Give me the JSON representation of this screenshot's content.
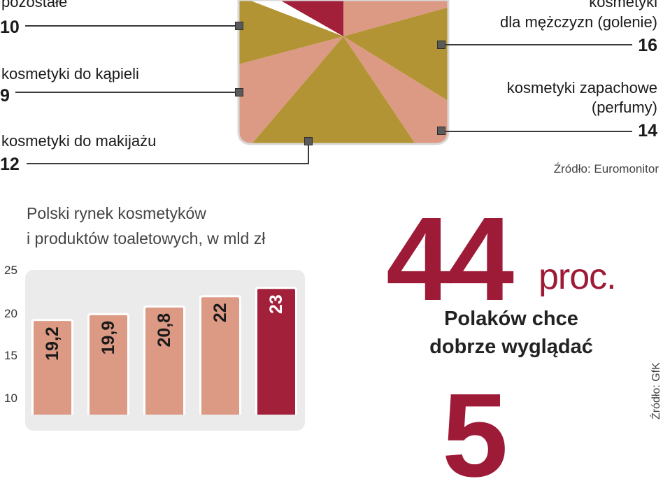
{
  "pie": {
    "labels": [
      {
        "label_lines": [
          "pozostałe"
        ],
        "value": "10"
      },
      {
        "label_lines": [
          "kosmetyki do kąpieli"
        ],
        "value": "9"
      },
      {
        "label_lines": [
          "kosmetyki do makijażu"
        ],
        "value": "12"
      },
      {
        "label_lines": [
          "kosmetyki",
          "dla mężczyzn (golenie)"
        ],
        "value": "16"
      },
      {
        "label_lines": [
          "kosmetyki zapachowe",
          "(perfumy)"
        ],
        "value": "14"
      }
    ],
    "source": "Źródło: Euromonitor",
    "colors": {
      "crimson": "#a3203a",
      "gold": "#b39434",
      "salmon": "#dc9a85"
    }
  },
  "bar": {
    "title_lines": [
      "Polski rynek kosmetyków",
      "i produktów toaletowych, w mld zł"
    ],
    "ticks": [
      "25",
      "20",
      "15",
      "10"
    ]
  },
  "stat": {
    "number": "44",
    "unit": "proc.",
    "text_lines": [
      "Polaków chce",
      "dobrze wyglądać"
    ],
    "next_number": "5",
    "source": "Źródło: GfK"
  },
  "chart_data": [
    {
      "type": "pie",
      "slices": [
        {
          "label": "pozostałe",
          "value": 10
        },
        {
          "label": "kosmetyki do kąpieli",
          "value": 9
        },
        {
          "label": "kosmetyki do makijażu",
          "value": 12
        },
        {
          "label": "kosmetyki dla mężczyzn (golenie)",
          "value": 16
        },
        {
          "label": "kosmetyki zapachowe (perfumy)",
          "value": 14
        }
      ]
    },
    {
      "type": "bar",
      "title": "Polski rynek kosmetyków i produktów toaletowych, w mld zł",
      "values": [
        19.2,
        19.9,
        20.8,
        22,
        23
      ],
      "value_labels": [
        "19,2",
        "19,9",
        "20,8",
        "22",
        "23"
      ],
      "highlight_last": true,
      "yticks": [
        10,
        15,
        20,
        25
      ],
      "ylim": [
        0,
        25
      ],
      "colors": {
        "bar": "#dc9a85",
        "highlight": "#a3203a"
      }
    }
  ]
}
